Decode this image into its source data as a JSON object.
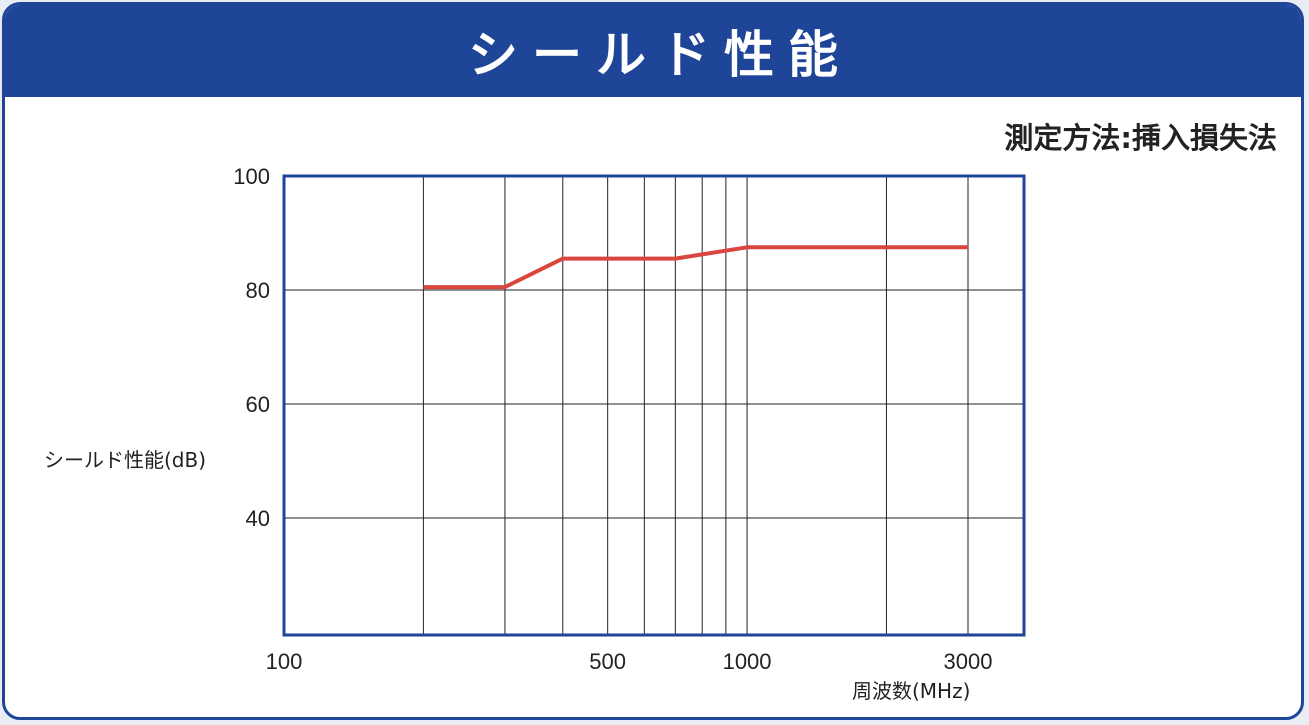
{
  "header": {
    "title": "シールド性能"
  },
  "method_label": "測定方法:挿入損失法",
  "colors": {
    "header_blue": "#1e4597",
    "series_red": "#d9463f",
    "grid": "#222222"
  },
  "chart_data": {
    "type": "line",
    "title": "",
    "xlabel": "周波数(MHz)",
    "ylabel": "シールド性能(dB)",
    "x_scale": "log",
    "xlim": [
      100,
      3000
    ],
    "ylim": [
      20,
      100
    ],
    "x_tick_labels": [
      {
        "value": 100,
        "label": "100"
      },
      {
        "value": 500,
        "label": "500"
      },
      {
        "value": 1000,
        "label": "1000"
      },
      {
        "value": 3000,
        "label": "3000"
      }
    ],
    "x_gridlines": [
      200,
      300,
      400,
      500,
      600,
      700,
      800,
      900,
      1000,
      2000,
      3000
    ],
    "y_ticks": [
      {
        "value": 100,
        "label": "100"
      },
      {
        "value": 80,
        "label": "80"
      },
      {
        "value": 60,
        "label": "60"
      },
      {
        "value": 40,
        "label": "40"
      }
    ],
    "grid": true,
    "series": [
      {
        "color": "#d9463f",
        "x": [
          200,
          300,
          400,
          700,
          1000,
          3000
        ],
        "y": [
          80.5,
          80.5,
          85.5,
          85.5,
          87.5,
          87.5
        ]
      }
    ]
  }
}
